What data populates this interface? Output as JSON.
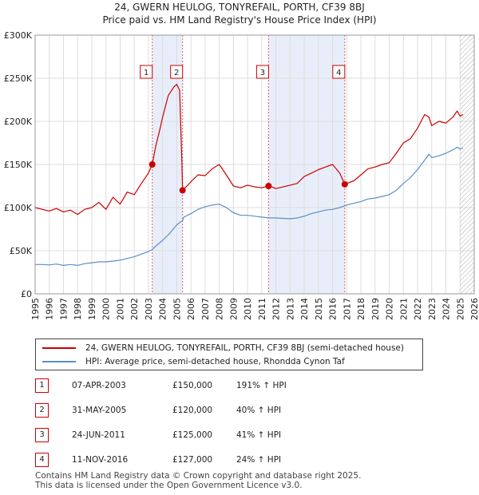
{
  "title_line1": "24, GWERN HEULOG, TONYREFAIL, PORTH, CF39 8BJ",
  "title_line2": "Price paid vs. HM Land Registry's House Price Index (HPI)",
  "chart_data": {
    "type": "line",
    "title": "24, GWERN HEULOG, TONYREFAIL, PORTH, CF39 8BJ — Price paid vs. HM Land Registry's House Price Index (HPI)",
    "xlabel": "",
    "ylabel": "",
    "xlim": [
      1995,
      2026
    ],
    "ylim": [
      0,
      300000
    ],
    "x_ticks": [
      1995,
      1996,
      1997,
      1998,
      1999,
      2000,
      2001,
      2002,
      2003,
      2004,
      2005,
      2006,
      2007,
      2008,
      2009,
      2010,
      2011,
      2012,
      2013,
      2014,
      2015,
      2016,
      2017,
      2018,
      2019,
      2020,
      2021,
      2022,
      2023,
      2024,
      2025,
      2026
    ],
    "y_ticks": [
      0,
      50000,
      100000,
      150000,
      200000,
      250000,
      300000
    ],
    "y_tick_labels": [
      "£0",
      "£50K",
      "£100K",
      "£150K",
      "£200K",
      "£250K",
      "£300K"
    ],
    "colors": {
      "property": "#cc0000",
      "hpi": "#5b8fc6",
      "shade": "#e8eef9",
      "vline": "#e06060",
      "grid": "#dddddd"
    },
    "series": [
      {
        "name": "24, GWERN HEULOG, TONYREFAIL, PORTH, CF39 8BJ (semi-detached house)",
        "x": [
          1995.0,
          1995.5,
          1996.0,
          1996.5,
          1997.0,
          1997.5,
          1998.0,
          1998.5,
          1999.0,
          1999.5,
          2000.0,
          2000.5,
          2001.0,
          2001.5,
          2002.0,
          2002.5,
          2003.0,
          2003.27,
          2003.5,
          2003.8,
          2004.0,
          2004.4,
          2004.8,
          2005.0,
          2005.2,
          2005.35,
          2005.41,
          2005.6,
          2006.0,
          2006.5,
          2007.0,
          2007.5,
          2008.0,
          2008.5,
          2009.0,
          2009.5,
          2010.0,
          2010.5,
          2011.0,
          2011.48,
          2011.7,
          2012.0,
          2012.5,
          2013.0,
          2013.5,
          2014.0,
          2014.5,
          2015.0,
          2015.5,
          2016.0,
          2016.5,
          2016.86,
          2017.0,
          2017.5,
          2018.0,
          2018.5,
          2019.0,
          2019.5,
          2020.0,
          2020.5,
          2021.0,
          2021.5,
          2022.0,
          2022.5,
          2022.8,
          2023.0,
          2023.5,
          2024.0,
          2024.5,
          2024.8,
          2025.0,
          2025.2
        ],
        "values": [
          100000,
          98000,
          96000,
          99000,
          95000,
          97000,
          92000,
          98000,
          100000,
          106000,
          98000,
          112000,
          104000,
          118000,
          115000,
          128000,
          140000,
          150000,
          170000,
          190000,
          205000,
          230000,
          240000,
          243000,
          236000,
          160000,
          120000,
          123000,
          130000,
          138000,
          137000,
          145000,
          150000,
          138000,
          125000,
          123000,
          126000,
          124000,
          123000,
          125000,
          124000,
          122000,
          124000,
          126000,
          128000,
          136000,
          140000,
          144000,
          147000,
          150000,
          140000,
          127000,
          128000,
          131000,
          138000,
          145000,
          147000,
          150000,
          152000,
          163000,
          175000,
          180000,
          192000,
          208000,
          205000,
          195000,
          200000,
          198000,
          205000,
          212000,
          206000,
          208000
        ]
      },
      {
        "name": "HPI: Average price, semi-detached house, Rhondda Cynon Taf",
        "x": [
          1995.0,
          1995.5,
          1996.0,
          1996.5,
          1997.0,
          1997.5,
          1998.0,
          1998.5,
          1999.0,
          1999.5,
          2000.0,
          2000.5,
          2001.0,
          2001.5,
          2002.0,
          2002.5,
          2003.0,
          2003.27,
          2003.5,
          2004.0,
          2004.5,
          2005.0,
          2005.41,
          2005.5,
          2006.0,
          2006.5,
          2007.0,
          2007.5,
          2008.0,
          2008.5,
          2009.0,
          2009.5,
          2010.0,
          2010.5,
          2011.0,
          2011.48,
          2011.5,
          2012.0,
          2012.5,
          2013.0,
          2013.5,
          2014.0,
          2014.5,
          2015.0,
          2015.5,
          2016.0,
          2016.5,
          2016.86,
          2017.0,
          2017.5,
          2018.0,
          2018.5,
          2019.0,
          2019.5,
          2020.0,
          2020.5,
          2021.0,
          2021.5,
          2022.0,
          2022.5,
          2022.8,
          2023.0,
          2023.5,
          2024.0,
          2024.5,
          2024.8,
          2025.0,
          2025.2
        ],
        "values": [
          34000,
          34000,
          33500,
          34500,
          33000,
          34000,
          33000,
          35000,
          36000,
          37000,
          37000,
          38000,
          39000,
          41000,
          43000,
          46000,
          49000,
          51500,
          55000,
          62000,
          70000,
          80000,
          85000,
          89000,
          93000,
          98000,
          101000,
          103000,
          104000,
          100000,
          94000,
          91000,
          91000,
          90000,
          89000,
          88000,
          88000,
          88000,
          87500,
          87000,
          88000,
          90000,
          93000,
          95000,
          97000,
          98000,
          100000,
          102000,
          103000,
          105000,
          107000,
          110000,
          111000,
          113000,
          115000,
          120000,
          128000,
          135000,
          144000,
          155000,
          162000,
          158000,
          160000,
          163000,
          167000,
          170000,
          168000,
          169000
        ]
      }
    ],
    "sales": [
      {
        "n": "1",
        "x": 2003.27,
        "price": 150000
      },
      {
        "n": "2",
        "x": 2005.41,
        "price": 120000
      },
      {
        "n": "3",
        "x": 2011.48,
        "price": 125000
      },
      {
        "n": "4",
        "x": 2016.86,
        "price": 127000
      }
    ],
    "shaded_spans": [
      [
        2003.27,
        2005.41
      ],
      [
        2011.48,
        2016.86
      ]
    ],
    "future_hatch_from": 2025.0
  },
  "legend": {
    "property_label": "24, GWERN HEULOG, TONYREFAIL, PORTH, CF39 8BJ (semi-detached house)",
    "hpi_label": "HPI: Average price, semi-detached house, Rhondda Cynon Taf"
  },
  "sales_table": [
    {
      "n": "1",
      "date": "07-APR-2003",
      "price": "£150,000",
      "hpi": "191% ↑ HPI"
    },
    {
      "n": "2",
      "date": "31-MAY-2005",
      "price": "£120,000",
      "hpi": "40% ↑ HPI"
    },
    {
      "n": "3",
      "date": "24-JUN-2011",
      "price": "£125,000",
      "hpi": "41% ↑ HPI"
    },
    {
      "n": "4",
      "date": "11-NOV-2016",
      "price": "£127,000",
      "hpi": "24% ↑ HPI"
    }
  ],
  "footer": {
    "line1": "Contains HM Land Registry data © Crown copyright and database right 2025.",
    "line2": "This data is licensed under the Open Government Licence v3.0."
  }
}
